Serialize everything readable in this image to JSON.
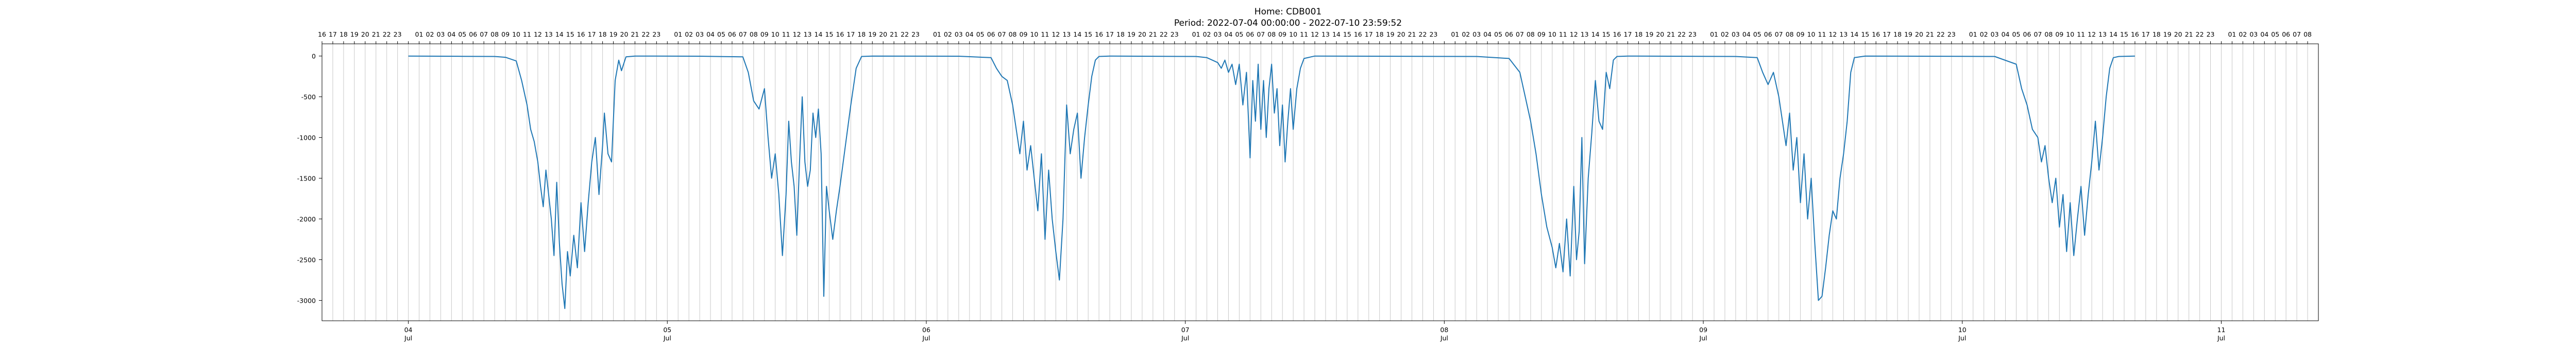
{
  "chart_data": {
    "type": "line",
    "title": "Home: CDB001",
    "subtitle": "Period: 2022-07-04 00:00:00 - 2022-07-10 23:59:52",
    "xlabel": "",
    "ylabel": "",
    "xlim": [
      "2022-07-03 16:00",
      "2022-07-11 09:00"
    ],
    "ylim": [
      -3250,
      150
    ],
    "yticks": [
      0,
      -500,
      -1000,
      -1500,
      -2000,
      -2500,
      -3000
    ],
    "xticks_bottom": [
      {
        "day": "04",
        "month": "Jul"
      },
      {
        "day": "05",
        "month": "Jul"
      },
      {
        "day": "06",
        "month": "Jul"
      },
      {
        "day": "07",
        "month": "Jul"
      },
      {
        "day": "08",
        "month": "Jul"
      },
      {
        "day": "09",
        "month": "Jul"
      },
      {
        "day": "10",
        "month": "Jul"
      },
      {
        "day": "11",
        "month": "Jul"
      }
    ],
    "xticks_top_hours": [
      "16",
      "17",
      "18",
      "19",
      "20",
      "21",
      "22",
      "23",
      "",
      "01",
      "02",
      "03",
      "04",
      "05",
      "06",
      "07",
      "08",
      "09",
      "10",
      "11",
      "12",
      "13",
      "14",
      "15",
      "16",
      "17",
      "18",
      "19",
      "20",
      "21",
      "22",
      "23",
      "",
      "01",
      "02",
      "03",
      "04",
      "05",
      "06",
      "07",
      "08",
      "09",
      "10",
      "11",
      "12",
      "13",
      "14",
      "15",
      "16",
      "17",
      "18",
      "19",
      "20",
      "21",
      "22",
      "23",
      "",
      "01",
      "02",
      "03",
      "04",
      "05",
      "06",
      "07",
      "08",
      "09",
      "10",
      "11",
      "12",
      "13",
      "14",
      "15",
      "16",
      "17",
      "18",
      "19",
      "20",
      "21",
      "22",
      "23",
      "",
      "01",
      "02",
      "03",
      "04",
      "05",
      "06",
      "07",
      "08",
      "09",
      "10",
      "11",
      "12",
      "13",
      "14",
      "15",
      "16",
      "17",
      "18",
      "19",
      "20",
      "21",
      "22",
      "23",
      "",
      "01",
      "02",
      "03",
      "04",
      "05",
      "06",
      "07",
      "08",
      "09",
      "10",
      "11",
      "12",
      "13",
      "14",
      "15",
      "16",
      "17",
      "18",
      "19",
      "20",
      "21",
      "22",
      "23",
      "",
      "01",
      "02",
      "03",
      "04",
      "05",
      "06",
      "07",
      "08",
      "09",
      "10",
      "11",
      "12",
      "13",
      "14",
      "15",
      "16",
      "17",
      "18",
      "19",
      "20",
      "21",
      "22",
      "23",
      "",
      "01",
      "02",
      "03",
      "04",
      "05",
      "06",
      "07",
      "08",
      "09",
      "10",
      "11",
      "12",
      "13",
      "14",
      "15",
      "16",
      "17",
      "18",
      "19",
      "20",
      "21",
      "22",
      "23",
      "",
      "01",
      "02",
      "03",
      "04",
      "05",
      "06",
      "07",
      "08"
    ],
    "hour_grid": true,
    "series": [
      {
        "color": "#1f77b4",
        "points": [
          [
            "2022-07-04 00:00",
            0
          ],
          [
            "2022-07-04 05:00",
            -3
          ],
          [
            "2022-07-04 08:00",
            -5
          ],
          [
            "2022-07-04 09:00",
            -15
          ],
          [
            "2022-07-04 10:00",
            -60
          ],
          [
            "2022-07-04 10:30",
            -300
          ],
          [
            "2022-07-04 11:00",
            -600
          ],
          [
            "2022-07-04 11:20",
            -900
          ],
          [
            "2022-07-04 11:40",
            -1050
          ],
          [
            "2022-07-04 12:00",
            -1300
          ],
          [
            "2022-07-04 12:15",
            -1600
          ],
          [
            "2022-07-04 12:30",
            -1850
          ],
          [
            "2022-07-04 12:45",
            -1400
          ],
          [
            "2022-07-04 13:00",
            -1700
          ],
          [
            "2022-07-04 13:15",
            -2000
          ],
          [
            "2022-07-04 13:30",
            -2450
          ],
          [
            "2022-07-04 13:45",
            -1550
          ],
          [
            "2022-07-04 14:00",
            -2300
          ],
          [
            "2022-07-04 14:15",
            -2800
          ],
          [
            "2022-07-04 14:30",
            -3100
          ],
          [
            "2022-07-04 14:45",
            -2400
          ],
          [
            "2022-07-04 15:00",
            -2700
          ],
          [
            "2022-07-04 15:20",
            -2200
          ],
          [
            "2022-07-04 15:40",
            -2600
          ],
          [
            "2022-07-04 16:00",
            -1800
          ],
          [
            "2022-07-04 16:20",
            -2400
          ],
          [
            "2022-07-04 16:40",
            -1800
          ],
          [
            "2022-07-04 17:00",
            -1300
          ],
          [
            "2022-07-04 17:20",
            -1000
          ],
          [
            "2022-07-04 17:40",
            -1700
          ],
          [
            "2022-07-04 18:00",
            -1100
          ],
          [
            "2022-07-04 18:10",
            -700
          ],
          [
            "2022-07-04 18:30",
            -1200
          ],
          [
            "2022-07-04 18:50",
            -1300
          ],
          [
            "2022-07-04 19:10",
            -300
          ],
          [
            "2022-07-04 19:30",
            -50
          ],
          [
            "2022-07-04 19:45",
            -180
          ],
          [
            "2022-07-04 20:10",
            -10
          ],
          [
            "2022-07-04 21:00",
            0
          ],
          [
            "2022-07-05 03:00",
            -2
          ],
          [
            "2022-07-05 07:00",
            -10
          ],
          [
            "2022-07-05 07:30",
            -200
          ],
          [
            "2022-07-05 08:00",
            -550
          ],
          [
            "2022-07-05 08:30",
            -650
          ],
          [
            "2022-07-05 09:00",
            -400
          ],
          [
            "2022-07-05 09:20",
            -1000
          ],
          [
            "2022-07-05 09:40",
            -1500
          ],
          [
            "2022-07-05 10:00",
            -1200
          ],
          [
            "2022-07-05 10:20",
            -1700
          ],
          [
            "2022-07-05 10:40",
            -2450
          ],
          [
            "2022-07-05 11:00",
            -1700
          ],
          [
            "2022-07-05 11:15",
            -800
          ],
          [
            "2022-07-05 11:30",
            -1300
          ],
          [
            "2022-07-05 11:45",
            -1600
          ],
          [
            "2022-07-05 12:00",
            -2200
          ],
          [
            "2022-07-05 12:15",
            -1300
          ],
          [
            "2022-07-05 12:30",
            -500
          ],
          [
            "2022-07-05 12:45",
            -1300
          ],
          [
            "2022-07-05 13:00",
            -1600
          ],
          [
            "2022-07-05 13:15",
            -1400
          ],
          [
            "2022-07-05 13:30",
            -700
          ],
          [
            "2022-07-05 13:45",
            -1000
          ],
          [
            "2022-07-05 14:00",
            -650
          ],
          [
            "2022-07-05 14:15",
            -1200
          ],
          [
            "2022-07-05 14:30",
            -2950
          ],
          [
            "2022-07-05 14:45",
            -1600
          ],
          [
            "2022-07-05 15:00",
            -1900
          ],
          [
            "2022-07-05 15:20",
            -2250
          ],
          [
            "2022-07-05 15:40",
            -1900
          ],
          [
            "2022-07-05 16:00",
            -1600
          ],
          [
            "2022-07-05 16:30",
            -1100
          ],
          [
            "2022-07-05 17:00",
            -600
          ],
          [
            "2022-07-05 17:30",
            -150
          ],
          [
            "2022-07-05 18:00",
            -5
          ],
          [
            "2022-07-05 19:00",
            0
          ],
          [
            "2022-07-06 03:00",
            -2
          ],
          [
            "2022-07-06 06:00",
            -20
          ],
          [
            "2022-07-06 06:30",
            -150
          ],
          [
            "2022-07-06 07:00",
            -250
          ],
          [
            "2022-07-06 07:30",
            -300
          ],
          [
            "2022-07-06 08:00",
            -600
          ],
          [
            "2022-07-06 08:20",
            -900
          ],
          [
            "2022-07-06 08:40",
            -1200
          ],
          [
            "2022-07-06 09:00",
            -800
          ],
          [
            "2022-07-06 09:20",
            -1400
          ],
          [
            "2022-07-06 09:40",
            -1100
          ],
          [
            "2022-07-06 10:00",
            -1500
          ],
          [
            "2022-07-06 10:20",
            -1900
          ],
          [
            "2022-07-06 10:40",
            -1200
          ],
          [
            "2022-07-06 11:00",
            -2250
          ],
          [
            "2022-07-06 11:20",
            -1400
          ],
          [
            "2022-07-06 11:40",
            -2000
          ],
          [
            "2022-07-06 12:00",
            -2400
          ],
          [
            "2022-07-06 12:20",
            -2750
          ],
          [
            "2022-07-06 12:40",
            -2000
          ],
          [
            "2022-07-06 13:00",
            -600
          ],
          [
            "2022-07-06 13:20",
            -1200
          ],
          [
            "2022-07-06 13:40",
            -900
          ],
          [
            "2022-07-06 14:00",
            -700
          ],
          [
            "2022-07-06 14:20",
            -1500
          ],
          [
            "2022-07-06 14:40",
            -1000
          ],
          [
            "2022-07-06 15:00",
            -600
          ],
          [
            "2022-07-06 15:20",
            -250
          ],
          [
            "2022-07-06 15:40",
            -50
          ],
          [
            "2022-07-06 16:00",
            -5
          ],
          [
            "2022-07-06 17:00",
            0
          ],
          [
            "2022-07-07 01:00",
            -5
          ],
          [
            "2022-07-07 02:00",
            -20
          ],
          [
            "2022-07-07 03:00",
            -80
          ],
          [
            "2022-07-07 03:20",
            -150
          ],
          [
            "2022-07-07 03:40",
            -50
          ],
          [
            "2022-07-07 04:00",
            -200
          ],
          [
            "2022-07-07 04:20",
            -100
          ],
          [
            "2022-07-07 04:40",
            -350
          ],
          [
            "2022-07-07 05:00",
            -100
          ],
          [
            "2022-07-07 05:20",
            -600
          ],
          [
            "2022-07-07 05:40",
            -200
          ],
          [
            "2022-07-07 06:00",
            -1250
          ],
          [
            "2022-07-07 06:15",
            -300
          ],
          [
            "2022-07-07 06:30",
            -800
          ],
          [
            "2022-07-07 06:45",
            -100
          ],
          [
            "2022-07-07 07:00",
            -900
          ],
          [
            "2022-07-07 07:15",
            -300
          ],
          [
            "2022-07-07 07:30",
            -1000
          ],
          [
            "2022-07-07 07:45",
            -400
          ],
          [
            "2022-07-07 08:00",
            -100
          ],
          [
            "2022-07-07 08:15",
            -700
          ],
          [
            "2022-07-07 08:30",
            -400
          ],
          [
            "2022-07-07 08:45",
            -1100
          ],
          [
            "2022-07-07 09:00",
            -600
          ],
          [
            "2022-07-07 09:15",
            -1300
          ],
          [
            "2022-07-07 09:30",
            -800
          ],
          [
            "2022-07-07 09:45",
            -400
          ],
          [
            "2022-07-07 10:00",
            -900
          ],
          [
            "2022-07-07 10:20",
            -400
          ],
          [
            "2022-07-07 10:40",
            -150
          ],
          [
            "2022-07-07 11:00",
            -30
          ],
          [
            "2022-07-07 12:00",
            0
          ],
          [
            "2022-07-08 03:00",
            -5
          ],
          [
            "2022-07-08 06:00",
            -30
          ],
          [
            "2022-07-08 07:00",
            -200
          ],
          [
            "2022-07-08 07:30",
            -500
          ],
          [
            "2022-07-08 08:00",
            -800
          ],
          [
            "2022-07-08 08:30",
            -1200
          ],
          [
            "2022-07-08 09:00",
            -1700
          ],
          [
            "2022-07-08 09:30",
            -2100
          ],
          [
            "2022-07-08 10:00",
            -2350
          ],
          [
            "2022-07-08 10:20",
            -2600
          ],
          [
            "2022-07-08 10:40",
            -2300
          ],
          [
            "2022-07-08 11:00",
            -2650
          ],
          [
            "2022-07-08 11:20",
            -2000
          ],
          [
            "2022-07-08 11:40",
            -2700
          ],
          [
            "2022-07-08 12:00",
            -1600
          ],
          [
            "2022-07-08 12:15",
            -2500
          ],
          [
            "2022-07-08 12:30",
            -2150
          ],
          [
            "2022-07-08 12:45",
            -1000
          ],
          [
            "2022-07-08 13:00",
            -2550
          ],
          [
            "2022-07-08 13:20",
            -1500
          ],
          [
            "2022-07-08 13:40",
            -950
          ],
          [
            "2022-07-08 14:00",
            -300
          ],
          [
            "2022-07-08 14:20",
            -800
          ],
          [
            "2022-07-08 14:40",
            -900
          ],
          [
            "2022-07-08 15:00",
            -200
          ],
          [
            "2022-07-08 15:20",
            -400
          ],
          [
            "2022-07-08 15:40",
            -50
          ],
          [
            "2022-07-08 16:00",
            -5
          ],
          [
            "2022-07-08 17:00",
            0
          ],
          [
            "2022-07-09 03:00",
            -5
          ],
          [
            "2022-07-09 05:00",
            -20
          ],
          [
            "2022-07-09 05:30",
            -200
          ],
          [
            "2022-07-09 06:00",
            -350
          ],
          [
            "2022-07-09 06:30",
            -200
          ],
          [
            "2022-07-09 07:00",
            -500
          ],
          [
            "2022-07-09 07:20",
            -800
          ],
          [
            "2022-07-09 07:40",
            -1100
          ],
          [
            "2022-07-09 08:00",
            -700
          ],
          [
            "2022-07-09 08:20",
            -1400
          ],
          [
            "2022-07-09 08:40",
            -1000
          ],
          [
            "2022-07-09 09:00",
            -1800
          ],
          [
            "2022-07-09 09:20",
            -1200
          ],
          [
            "2022-07-09 09:40",
            -2000
          ],
          [
            "2022-07-09 10:00",
            -1500
          ],
          [
            "2022-07-09 10:20",
            -2300
          ],
          [
            "2022-07-09 10:40",
            -3000
          ],
          [
            "2022-07-09 11:00",
            -2950
          ],
          [
            "2022-07-09 11:20",
            -2600
          ],
          [
            "2022-07-09 11:40",
            -2200
          ],
          [
            "2022-07-09 12:00",
            -1900
          ],
          [
            "2022-07-09 12:20",
            -2000
          ],
          [
            "2022-07-09 12:40",
            -1500
          ],
          [
            "2022-07-09 13:00",
            -1200
          ],
          [
            "2022-07-09 13:20",
            -800
          ],
          [
            "2022-07-09 13:40",
            -200
          ],
          [
            "2022-07-09 14:00",
            -20
          ],
          [
            "2022-07-09 15:00",
            0
          ],
          [
            "2022-07-10 03:00",
            -5
          ],
          [
            "2022-07-10 05:00",
            -100
          ],
          [
            "2022-07-10 05:30",
            -400
          ],
          [
            "2022-07-10 06:00",
            -600
          ],
          [
            "2022-07-10 06:30",
            -900
          ],
          [
            "2022-07-10 07:00",
            -1000
          ],
          [
            "2022-07-10 07:20",
            -1300
          ],
          [
            "2022-07-10 07:40",
            -1100
          ],
          [
            "2022-07-10 08:00",
            -1500
          ],
          [
            "2022-07-10 08:20",
            -1800
          ],
          [
            "2022-07-10 08:40",
            -1500
          ],
          [
            "2022-07-10 09:00",
            -2100
          ],
          [
            "2022-07-10 09:20",
            -1700
          ],
          [
            "2022-07-10 09:40",
            -2400
          ],
          [
            "2022-07-10 10:00",
            -1800
          ],
          [
            "2022-07-10 10:20",
            -2450
          ],
          [
            "2022-07-10 10:40",
            -2000
          ],
          [
            "2022-07-10 11:00",
            -1600
          ],
          [
            "2022-07-10 11:20",
            -2200
          ],
          [
            "2022-07-10 11:40",
            -1700
          ],
          [
            "2022-07-10 12:00",
            -1300
          ],
          [
            "2022-07-10 12:20",
            -800
          ],
          [
            "2022-07-10 12:40",
            -1400
          ],
          [
            "2022-07-10 13:00",
            -1000
          ],
          [
            "2022-07-10 13:20",
            -500
          ],
          [
            "2022-07-10 13:40",
            -150
          ],
          [
            "2022-07-10 14:00",
            -20
          ],
          [
            "2022-07-10 14:30",
            -5
          ],
          [
            "2022-07-10 16:00",
            0
          ]
        ]
      }
    ]
  }
}
